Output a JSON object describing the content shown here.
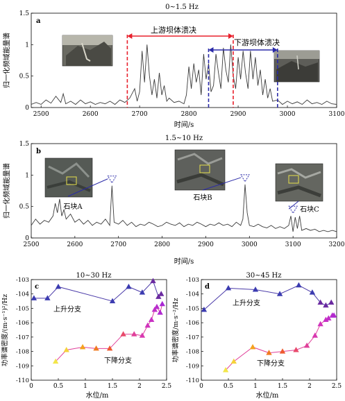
{
  "panel_a": {
    "letter": "a",
    "title": "0~1.5 Hz",
    "ylabel": "归一化频域能量谱",
    "xlabel": "时间/s",
    "annot_upper": "上游坝体溃决",
    "annot_lower": "下游坝体溃决",
    "colors": {
      "upper": "#e8202c",
      "lower": "#2a2aa8",
      "trace": "#3a3a3a"
    }
  },
  "panel_b": {
    "letter": "b",
    "title": "1.5~10 Hz",
    "ylabel": "归一化频域能量谱",
    "xlabel": "时间/s",
    "label_A": "石块A",
    "label_B": "石块B",
    "label_C": "石块C",
    "colors": {
      "marker": "#2a2aa8",
      "trace": "#3a3a3a"
    }
  },
  "panel_c": {
    "letter": "c",
    "title": "10~30 Hz",
    "ylabel": "功率谱密度/(m·s⁻¹)²/Hz",
    "xlabel": "水位/m",
    "rising": "上升分支",
    "falling": "下降分支"
  },
  "panel_d": {
    "letter": "d",
    "title": "30~45 Hz",
    "ylabel": "功率谱密度/m·s⁻²/Hz",
    "xlabel": "水位/m",
    "rising": "上升分支",
    "falling": "下降分支"
  },
  "chart_data": [
    {
      "type": "line",
      "id": "a",
      "title": "0~1.5 Hz",
      "xlabel": "时间/s",
      "ylabel": "归一化频域能量谱",
      "xlim": [
        2480,
        3100
      ],
      "ylim": [
        0,
        1.5
      ],
      "xticks": [
        2500,
        2600,
        2700,
        2800,
        2900,
        3000,
        3100
      ],
      "yticks": [
        0,
        0.5,
        1.0,
        1.5
      ],
      "x": [
        2480,
        2490,
        2500,
        2510,
        2520,
        2530,
        2540,
        2545,
        2550,
        2560,
        2570,
        2580,
        2590,
        2600,
        2610,
        2620,
        2630,
        2640,
        2650,
        2660,
        2670,
        2680,
        2690,
        2695,
        2700,
        2705,
        2710,
        2715,
        2720,
        2725,
        2730,
        2735,
        2740,
        2745,
        2750,
        2755,
        2760,
        2770,
        2780,
        2790,
        2795,
        2800,
        2805,
        2810,
        2815,
        2820,
        2825,
        2830,
        2835,
        2840,
        2845,
        2850,
        2855,
        2860,
        2865,
        2870,
        2875,
        2880,
        2885,
        2890,
        2895,
        2900,
        2905,
        2910,
        2915,
        2920,
        2925,
        2930,
        2935,
        2940,
        2945,
        2950,
        2955,
        2960,
        2965,
        2970,
        2980,
        2990,
        3000,
        3010,
        3020,
        3030,
        3040,
        3050,
        3060,
        3070,
        3080,
        3090,
        3100
      ],
      "y": [
        0.05,
        0.08,
        0.05,
        0.12,
        0.07,
        0.18,
        0.08,
        0.22,
        0.06,
        0.1,
        0.05,
        0.12,
        0.06,
        0.09,
        0.05,
        0.08,
        0.06,
        0.1,
        0.05,
        0.12,
        0.08,
        0.15,
        0.3,
        0.1,
        0.25,
        0.9,
        0.4,
        1.0,
        0.5,
        0.2,
        0.45,
        0.15,
        0.55,
        0.2,
        0.35,
        0.1,
        0.15,
        0.08,
        0.1,
        0.06,
        0.2,
        0.65,
        0.3,
        0.7,
        0.4,
        0.6,
        0.2,
        0.85,
        0.45,
        0.7,
        0.25,
        0.35,
        0.85,
        0.55,
        0.3,
        0.95,
        0.6,
        0.4,
        1.0,
        0.5,
        0.3,
        0.8,
        0.45,
        0.9,
        0.55,
        0.3,
        0.9,
        0.45,
        0.8,
        0.35,
        0.6,
        0.2,
        0.45,
        0.15,
        0.3,
        0.1,
        0.12,
        0.05,
        0.1,
        0.06,
        0.09,
        0.05,
        0.12,
        0.06,
        0.08,
        0.05,
        0.1,
        0.06,
        0.05
      ],
      "annotations": [
        {
          "label": "上游坝体溃决",
          "x_start": 2675,
          "x_end": 2890
        },
        {
          "label": "下游坝体溃决",
          "x_start": 2840,
          "x_end": 2980
        }
      ]
    },
    {
      "type": "line",
      "id": "b",
      "title": "1.5~10 Hz",
      "xlabel": "时间/s",
      "ylabel": "归一化频域能量谱",
      "xlim": [
        2500,
        3200
      ],
      "ylim": [
        0,
        1.5
      ],
      "xticks": [
        2500,
        2600,
        2700,
        2800,
        2900,
        3000,
        3100,
        3200
      ],
      "yticks": [
        0,
        0.5,
        1.0,
        1.5
      ],
      "x": [
        2500,
        2510,
        2520,
        2530,
        2540,
        2550,
        2555,
        2560,
        2565,
        2570,
        2575,
        2580,
        2590,
        2600,
        2610,
        2620,
        2630,
        2640,
        2650,
        2660,
        2670,
        2675,
        2680,
        2685,
        2690,
        2700,
        2710,
        2720,
        2730,
        2740,
        2750,
        2760,
        2770,
        2780,
        2790,
        2800,
        2810,
        2820,
        2830,
        2840,
        2850,
        2860,
        2870,
        2880,
        2890,
        2900,
        2910,
        2920,
        2930,
        2940,
        2950,
        2960,
        2970,
        2980,
        2985,
        2990,
        2995,
        3000,
        3010,
        3020,
        3030,
        3040,
        3050,
        3060,
        3070,
        3080,
        3090,
        3095,
        3100,
        3105,
        3110,
        3115,
        3120,
        3130,
        3140,
        3150,
        3160,
        3170,
        3180,
        3190,
        3200
      ],
      "y": [
        0.2,
        0.3,
        0.22,
        0.28,
        0.25,
        0.35,
        0.55,
        0.4,
        0.62,
        0.35,
        0.45,
        0.3,
        0.38,
        0.25,
        0.3,
        0.22,
        0.28,
        0.2,
        0.25,
        0.22,
        0.3,
        0.25,
        0.2,
        0.83,
        0.25,
        0.22,
        0.28,
        0.2,
        0.25,
        0.18,
        0.22,
        0.2,
        0.25,
        0.22,
        0.18,
        0.2,
        0.25,
        0.22,
        0.2,
        0.24,
        0.18,
        0.22,
        0.2,
        0.25,
        0.22,
        0.18,
        0.22,
        0.2,
        0.24,
        0.2,
        0.22,
        0.18,
        0.25,
        0.2,
        0.3,
        0.85,
        0.4,
        0.2,
        0.18,
        0.22,
        0.18,
        0.16,
        0.2,
        0.15,
        0.18,
        0.15,
        0.2,
        0.35,
        0.1,
        0.33,
        0.15,
        0.35,
        0.12,
        0.15,
        0.12,
        0.14,
        0.1,
        0.12,
        0.1,
        0.12,
        0.1
      ],
      "annotations": [
        {
          "label": "石块A",
          "x": 2685,
          "y": 0.83
        },
        {
          "label": "石块B",
          "x": 2990,
          "y": 0.85
        },
        {
          "label": "石块C",
          "x": 3100,
          "y": 0.35
        }
      ]
    },
    {
      "type": "scatter",
      "id": "c",
      "title": "10~30 Hz",
      "xlabel": "水位/m",
      "ylabel": "功率谱密度/(m·s⁻¹)²/Hz",
      "xlim": [
        0,
        2.5
      ],
      "ylim": [
        -110,
        -103
      ],
      "xticks": [
        0,
        0.5,
        1.0,
        1.5,
        2.0,
        2.5
      ],
      "yticks": [
        -103,
        -104,
        -105,
        -106,
        -107,
        -108,
        -109,
        -110
      ],
      "series": [
        {
          "name": "上升分支",
          "x": [
            0.05,
            0.3,
            0.5,
            1.5,
            1.8,
            2.05,
            2.25,
            2.35,
            2.4
          ],
          "y": [
            -104.3,
            -104.3,
            -103.5,
            -104.5,
            -103.5,
            -103.9,
            -103.1,
            -104.2,
            -104.0
          ]
        },
        {
          "name": "下降分支",
          "x": [
            0.45,
            0.65,
            0.95,
            1.2,
            1.45,
            1.7,
            1.9,
            2.05,
            2.15,
            2.22,
            2.28,
            2.32,
            2.38,
            2.42
          ],
          "y": [
            -108.7,
            -107.9,
            -107.7,
            -107.8,
            -107.8,
            -106.8,
            -106.8,
            -106.9,
            -106.2,
            -105.8,
            -105.1,
            -104.9,
            -105.3,
            -104.7
          ]
        }
      ]
    },
    {
      "type": "scatter",
      "id": "d",
      "title": "30~45 Hz",
      "xlabel": "水位/m",
      "ylabel": "功率谱密度/m·s⁻²/Hz",
      "xlim": [
        0,
        2.5
      ],
      "ylim": [
        -110,
        -103
      ],
      "xticks": [
        0,
        0.5,
        1.0,
        1.5,
        2.0,
        2.5
      ],
      "yticks": [
        -103,
        -104,
        -105,
        -106,
        -107,
        -108,
        -109,
        -110
      ],
      "series": [
        {
          "name": "上升分支",
          "x": [
            0.05,
            0.5,
            1.0,
            1.45,
            1.8,
            2.05,
            2.2,
            2.3,
            2.4
          ],
          "y": [
            -105.1,
            -103.6,
            -103.7,
            -104.0,
            -103.4,
            -103.9,
            -104.6,
            -104.8,
            -104.6
          ]
        },
        {
          "name": "下降分支",
          "x": [
            0.45,
            0.6,
            0.95,
            1.25,
            1.5,
            1.75,
            1.95,
            2.1,
            2.2,
            2.3,
            2.35,
            2.42,
            2.45
          ],
          "y": [
            -109.3,
            -108.7,
            -107.7,
            -108.1,
            -108.0,
            -107.9,
            -107.6,
            -106.9,
            -106.1,
            -105.8,
            -105.7,
            -105.5,
            -105.5
          ]
        }
      ]
    }
  ]
}
